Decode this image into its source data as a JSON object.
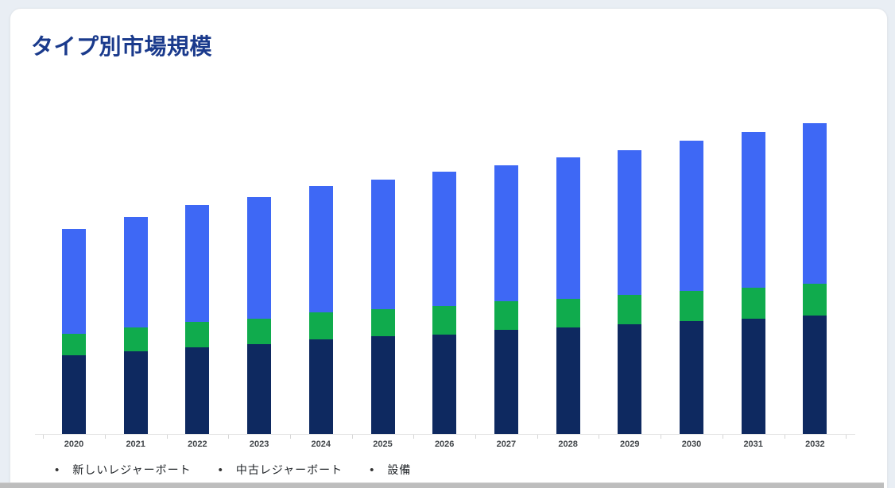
{
  "card": {
    "title": "タイプ別市場規模"
  },
  "chart_data": {
    "type": "bar",
    "stacked": true,
    "title": "タイプ別市場規模",
    "categories": [
      "2020",
      "2021",
      "2022",
      "2023",
      "2024",
      "2025",
      "2026",
      "2027",
      "2028",
      "2029",
      "2030",
      "2031",
      "2032"
    ],
    "series": [
      {
        "name": "新しいレジャーボート",
        "slug": "new-leisure-boats",
        "color": "#0e2960",
        "values": [
          99,
          104,
          109,
          113,
          119,
          123,
          125,
          131,
          134,
          138,
          142,
          145,
          149
        ]
      },
      {
        "name": "中古レジャーボート",
        "slug": "used-leisure-boats",
        "color": "#10ab4d",
        "values": [
          27,
          30,
          32,
          32,
          34,
          34,
          36,
          36,
          36,
          37,
          38,
          39,
          40
        ]
      },
      {
        "name": "設備",
        "slug": "equipment",
        "color": "#3e68f5",
        "values": [
          132,
          139,
          147,
          153,
          159,
          163,
          169,
          171,
          178,
          182,
          189,
          196,
          202
        ]
      }
    ],
    "xlabel": "",
    "ylabel": "",
    "grid": false,
    "y_axis": {
      "visible": false,
      "note": "no y-axis ticks or value labels shown; series values are estimated relative heights (px)"
    },
    "legend_position": "bottom-left",
    "legend_bullet": "•",
    "legend_bullet_color": "#333333"
  },
  "colors": {
    "page_bg": "#e9eef4",
    "card_bg": "#ffffff",
    "card_border": "#e3e7ec",
    "title": "#1a3a8c",
    "axis_line": "#e3e3e3",
    "tick": "#d6d6d6",
    "year_label": "#42464a",
    "legend_text": "#212529",
    "scrollbar": "#bdbdbd"
  }
}
